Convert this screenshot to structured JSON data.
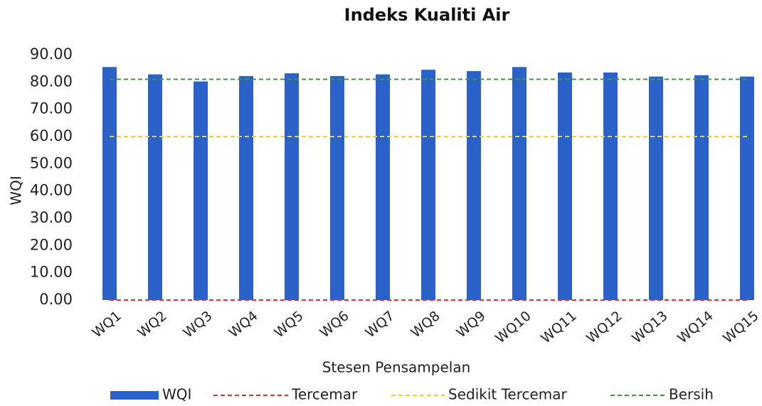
{
  "chart_data": {
    "type": "bar",
    "title": "Indeks Kualiti Air",
    "x_label": "Stesen Pensampelan",
    "y_label": "WQI",
    "categories": [
      "WQ1",
      "WQ2",
      "WQ3",
      "WQ4",
      "WQ5",
      "WQ6",
      "WQ7",
      "WQ8",
      "WQ9",
      "WQ10",
      "WQ11",
      "WQ12",
      "WQ13",
      "WQ14",
      "WQ15"
    ],
    "series": [
      {
        "name": "WQI",
        "type": "bar",
        "color": "#2a62c9",
        "values": [
          85.5,
          82.8,
          80.2,
          82.2,
          83.2,
          82.2,
          82.8,
          84.5,
          84.0,
          85.5,
          83.5,
          83.5,
          82.0,
          82.5,
          82.0
        ]
      },
      {
        "name": "Tercemar",
        "type": "line",
        "color": "#e03030",
        "values": [
          0,
          0,
          0,
          0,
          0,
          0,
          0,
          0,
          0,
          0,
          0,
          0,
          0,
          0,
          0
        ]
      },
      {
        "name": "Sedikit Tercemar",
        "type": "line",
        "color": "#f2d21e",
        "values": [
          60,
          60,
          60,
          60,
          60,
          60,
          60,
          60,
          60,
          60,
          60,
          60,
          60,
          60,
          60
        ]
      },
      {
        "name": "Bersih",
        "type": "line",
        "color": "#3a9a3a",
        "values": [
          81,
          81,
          81,
          81,
          81,
          81,
          81,
          81,
          81,
          81,
          81,
          81,
          81,
          81,
          81
        ]
      }
    ],
    "ylim": [
      0,
      90
    ],
    "yticks": [
      {
        "value": 0,
        "label": "0.00"
      },
      {
        "value": 10,
        "label": "10.00"
      },
      {
        "value": 20,
        "label": "20.00"
      },
      {
        "value": 30,
        "label": "30.00"
      },
      {
        "value": 40,
        "label": "40.00"
      },
      {
        "value": 50,
        "label": "50.00"
      },
      {
        "value": 60,
        "label": "60.00"
      },
      {
        "value": 70,
        "label": "70.00"
      },
      {
        "value": 80,
        "label": "80.00"
      },
      {
        "value": 90,
        "label": "90.00"
      }
    ],
    "grid": false,
    "legend": "bottom"
  }
}
